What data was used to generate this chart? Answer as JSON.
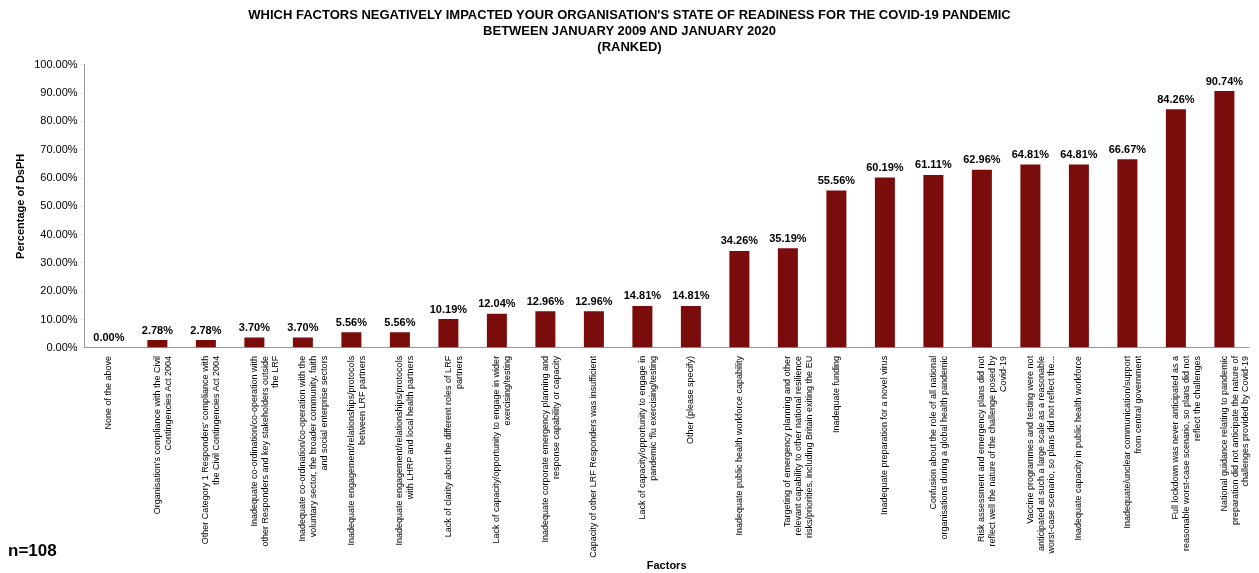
{
  "chart_data": {
    "type": "bar",
    "title": "WHICH FACTORS NEGATIVELY IMPACTED YOUR ORGANISATION'S STATE OF READINESS FOR THE COVID-19 PANDEMIC\nBETWEEN JANUARY 2009 AND JANUARY 2020\n(RANKED)",
    "xlabel": "Factors",
    "ylabel": "Percentage of DsPH",
    "categories": [
      "None of the above",
      "Organisation's compliance with the Civil\nContingencies Act 2004",
      "Other Category 1 Responders' compliance with\nthe Civil Contingencies Act 2004",
      "Inadequate co-ordination/co-operation with\nother Responders and key stakeholders outside\nthe LRF",
      "Inadequate co-ordination/co-operation with the\nvoluntary sector, the broader community, faith\nand social enterprise sectors",
      "Inadequate engagement/relationships/protocols\nbetween LRF partners",
      "Inadequate engagement/relationships/protocols\nwith LHRP and local health partners",
      "Lack of clarity about the different roles of LRF\npartners",
      "Lack of capacity/opportunity to engage in wider\nexercising/testing",
      "Inadequate corporate emergency planning and\nresponse capability or capacity",
      "Capacity of other LRF Responders was insufficient",
      "Lack of capacity/opportunity to engage in\npandemic 'flu exercising/testing",
      "Other (please specify)",
      "Inadequate public health workforce capability",
      "Targeting of emergency planning and other\nrelevant capability to other national resilience\nrisks/priorities, including Britain exiting the EU",
      "Inadequate funding",
      "Inadequate preparation for a novel virus",
      "Confusion about the role of all national\norganisations during a global health pandemic",
      "Risk assessment and emergency plans did not\nreflect well the nature of the challenge posed by\nCovid-19",
      "Vaccine programmes and testing were not\nanticipated at such a large scale as a reasonable\nworst-case scenario, so plans did not reflect the...",
      "Inadequate capacity in public health workforce",
      "Inadequate/unclear communication/support\nfrom central government",
      "Full lockdown was never anticipated as a\nreasonable worst-case scenario, so plans did not\nreflect the challenges",
      "National guidance relating to pandemic\npreparation did not anticipate the nature of\nchallenges provided by Covid-19"
    ],
    "values": [
      0,
      2.78,
      2.78,
      3.7,
      3.7,
      5.56,
      5.56,
      10.19,
      12.04,
      12.96,
      12.96,
      14.81,
      14.81,
      34.26,
      35.19,
      55.56,
      60.19,
      61.11,
      62.96,
      64.81,
      64.81,
      66.67,
      84.26,
      90.74
    ],
    "value_labels": [
      "0.00%",
      "2.78%",
      "2.78%",
      "3.70%",
      "3.70%",
      "5.56%",
      "5.56%",
      "10.19%",
      "12.04%",
      "12.96%",
      "12.96%",
      "14.81%",
      "14.81%",
      "34.26%",
      "35.19%",
      "55.56%",
      "60.19%",
      "61.11%",
      "62.96%",
      "64.81%",
      "64.81%",
      "66.67%",
      "84.26%",
      "90.74%"
    ],
    "color": "#7b0c0c",
    "ylim": [
      0,
      100
    ],
    "yticks": [
      {
        "value": 0,
        "label": "0.00%"
      },
      {
        "value": 10,
        "label": "10.00%"
      },
      {
        "value": 20,
        "label": "20.00%"
      },
      {
        "value": 30,
        "label": "30.00%"
      },
      {
        "value": 40,
        "label": "40.00%"
      },
      {
        "value": 50,
        "label": "50.00%"
      },
      {
        "value": 60,
        "label": "60.00%"
      },
      {
        "value": 70,
        "label": "70.00%"
      },
      {
        "value": 80,
        "label": "80.00%"
      },
      {
        "value": 90,
        "label": "90.00%"
      },
      {
        "value": 100,
        "label": "100.00%"
      }
    ],
    "grid": false,
    "legend": false,
    "annotations": [
      "n=108"
    ]
  }
}
